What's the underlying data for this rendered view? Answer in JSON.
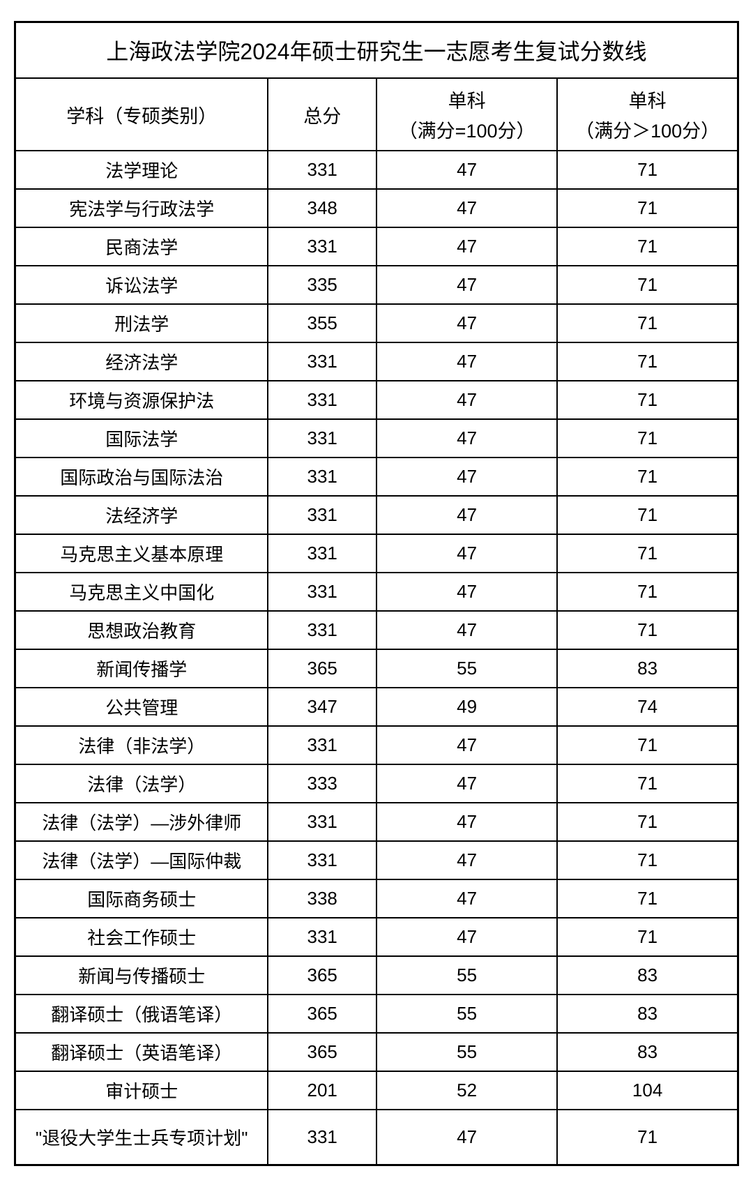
{
  "table": {
    "title": "上海政法学院2024年硕士研究生一志愿考生复试分数线",
    "columns": {
      "subject": "学科（专硕类别）",
      "total": "总分",
      "sub1_top": "单科",
      "sub1_bottom": "（满分=100分）",
      "sub2_top": "单科",
      "sub2_bottom": "（满分＞100分）"
    },
    "rows": [
      {
        "subject": "法学理论",
        "total": "331",
        "sub1": "47",
        "sub2": "71"
      },
      {
        "subject": "宪法学与行政法学",
        "total": "348",
        "sub1": "47",
        "sub2": "71"
      },
      {
        "subject": "民商法学",
        "total": "331",
        "sub1": "47",
        "sub2": "71"
      },
      {
        "subject": "诉讼法学",
        "total": "335",
        "sub1": "47",
        "sub2": "71"
      },
      {
        "subject": "刑法学",
        "total": "355",
        "sub1": "47",
        "sub2": "71"
      },
      {
        "subject": "经济法学",
        "total": "331",
        "sub1": "47",
        "sub2": "71"
      },
      {
        "subject": "环境与资源保护法",
        "total": "331",
        "sub1": "47",
        "sub2": "71"
      },
      {
        "subject": "国际法学",
        "total": "331",
        "sub1": "47",
        "sub2": "71"
      },
      {
        "subject": "国际政治与国际法治",
        "total": "331",
        "sub1": "47",
        "sub2": "71"
      },
      {
        "subject": "法经济学",
        "total": "331",
        "sub1": "47",
        "sub2": "71"
      },
      {
        "subject": "马克思主义基本原理",
        "total": "331",
        "sub1": "47",
        "sub2": "71"
      },
      {
        "subject": "马克思主义中国化",
        "total": "331",
        "sub1": "47",
        "sub2": "71"
      },
      {
        "subject": "思想政治教育",
        "total": "331",
        "sub1": "47",
        "sub2": "71"
      },
      {
        "subject": "新闻传播学",
        "total": "365",
        "sub1": "55",
        "sub2": "83"
      },
      {
        "subject": "公共管理",
        "total": "347",
        "sub1": "49",
        "sub2": "74"
      },
      {
        "subject": "法律（非法学）",
        "total": "331",
        "sub1": "47",
        "sub2": "71"
      },
      {
        "subject": "法律（法学）",
        "total": "333",
        "sub1": "47",
        "sub2": "71"
      },
      {
        "subject": "法律（法学）—涉外律师",
        "total": "331",
        "sub1": "47",
        "sub2": "71"
      },
      {
        "subject": "法律（法学）—国际仲裁",
        "total": "331",
        "sub1": "47",
        "sub2": "71"
      },
      {
        "subject": "国际商务硕士",
        "total": "338",
        "sub1": "47",
        "sub2": "71"
      },
      {
        "subject": "社会工作硕士",
        "total": "331",
        "sub1": "47",
        "sub2": "71"
      },
      {
        "subject": "新闻与传播硕士",
        "total": "365",
        "sub1": "55",
        "sub2": "83"
      },
      {
        "subject": "翻译硕士（俄语笔译）",
        "total": "365",
        "sub1": "55",
        "sub2": "83"
      },
      {
        "subject": "翻译硕士（英语笔译）",
        "total": "365",
        "sub1": "55",
        "sub2": "83"
      },
      {
        "subject": "审计硕士",
        "total": "201",
        "sub1": "52",
        "sub2": "104"
      },
      {
        "subject": "\"退役大学生士兵专项计划\"",
        "total": "331",
        "sub1": "47",
        "sub2": "71"
      }
    ]
  },
  "styling": {
    "background_color": "#ffffff",
    "border_color": "#000000",
    "text_color": "#000000",
    "title_fontsize": 32,
    "header_fontsize": 27,
    "body_fontsize": 26,
    "column_widths": {
      "subject": "35%",
      "total": "15%",
      "sub1": "25%",
      "sub2": "25%"
    }
  }
}
